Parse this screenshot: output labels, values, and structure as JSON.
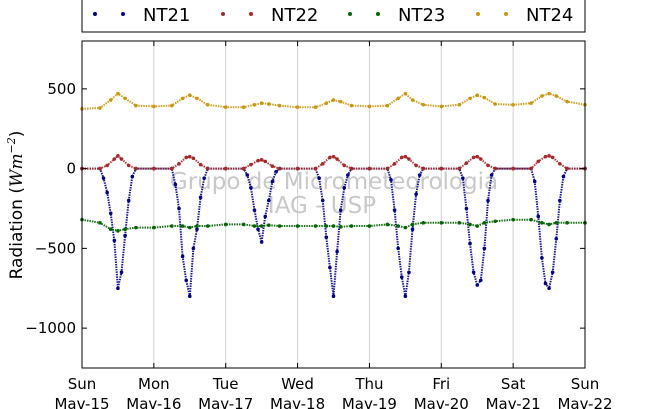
{
  "chart_data": {
    "type": "scatter",
    "title": "",
    "ylabel": "Radiation ($Wm^{-2}$)",
    "ylabel_text": "Radiation (",
    "ylabel_math": "Wm",
    "ylabel_exp": "−2",
    "ylabel_close": ")",
    "ylim": [
      -1250,
      800
    ],
    "yticks": [
      500,
      0,
      -500,
      -1000
    ],
    "ytick_labels": [
      "500",
      "0",
      "−500",
      "−1000"
    ],
    "xlim": [
      0,
      7
    ],
    "xticks": [
      0,
      1,
      2,
      3,
      4,
      5,
      6,
      7
    ],
    "xtick_labels": [
      [
        "Sun",
        "Mav-15"
      ],
      [
        "Mon",
        "Mav-16"
      ],
      [
        "Tue",
        "Mav-17"
      ],
      [
        "Wed",
        "Mav-18"
      ],
      [
        "Thu",
        "Mav-19"
      ],
      [
        "Fri",
        "Mav-20"
      ],
      [
        "Sat",
        "Mav-21"
      ],
      [
        "Sun",
        "Mav-22"
      ]
    ],
    "grid": true,
    "legend_position": "top",
    "watermark": [
      "Grupo de Micrometeorologia",
      "IAG - USP"
    ],
    "series": [
      {
        "name": "NT21",
        "color": "#000080",
        "x": [
          0,
          0.25,
          0.3,
          0.35,
          0.4,
          0.45,
          0.5,
          0.55,
          0.6,
          0.65,
          0.7,
          0.75,
          1,
          1.25,
          1.3,
          1.35,
          1.4,
          1.45,
          1.5,
          1.55,
          1.6,
          1.65,
          1.7,
          1.75,
          2,
          2.25,
          2.3,
          2.35,
          2.4,
          2.45,
          2.5,
          2.55,
          2.6,
          2.65,
          2.7,
          2.75,
          3,
          3.25,
          3.3,
          3.35,
          3.4,
          3.45,
          3.5,
          3.55,
          3.6,
          3.65,
          3.7,
          3.75,
          4,
          4.25,
          4.3,
          4.35,
          4.4,
          4.45,
          4.5,
          4.55,
          4.6,
          4.65,
          4.7,
          4.75,
          5,
          5.25,
          5.3,
          5.35,
          5.4,
          5.45,
          5.5,
          5.55,
          5.6,
          5.65,
          5.7,
          5.75,
          6,
          6.25,
          6.3,
          6.35,
          6.4,
          6.45,
          6.5,
          6.55,
          6.6,
          6.65,
          6.7,
          6.75,
          7
        ],
        "y": [
          0,
          0,
          -60,
          -150,
          -280,
          -450,
          -750,
          -650,
          -420,
          -200,
          -50,
          0,
          0,
          0,
          -100,
          -250,
          -550,
          -700,
          -800,
          -500,
          -380,
          -180,
          -60,
          0,
          0,
          0,
          -40,
          -120,
          -260,
          -380,
          -460,
          -300,
          -200,
          -80,
          -20,
          0,
          0,
          0,
          -60,
          -200,
          -430,
          -620,
          -800,
          -520,
          -260,
          -120,
          -40,
          0,
          0,
          0,
          -70,
          -260,
          -500,
          -680,
          -800,
          -650,
          -380,
          -160,
          -40,
          0,
          0,
          0,
          -60,
          -250,
          -470,
          -650,
          -730,
          -700,
          -500,
          -200,
          -40,
          0,
          0,
          0,
          -80,
          -300,
          -560,
          -720,
          -750,
          -650,
          -440,
          -200,
          -50,
          0,
          0
        ]
      },
      {
        "name": "NT22",
        "color": "#a52a2a",
        "x": [
          0,
          0.25,
          0.35,
          0.45,
          0.5,
          0.55,
          0.65,
          0.75,
          1,
          1.25,
          1.35,
          1.45,
          1.5,
          1.55,
          1.65,
          1.75,
          2,
          2.25,
          2.35,
          2.45,
          2.5,
          2.55,
          2.65,
          2.75,
          3,
          3.25,
          3.35,
          3.45,
          3.5,
          3.55,
          3.65,
          3.75,
          4,
          4.25,
          4.35,
          4.45,
          4.5,
          4.55,
          4.65,
          4.75,
          5,
          5.25,
          5.35,
          5.45,
          5.5,
          5.55,
          5.65,
          5.75,
          6,
          6.25,
          6.35,
          6.45,
          6.5,
          6.55,
          6.65,
          6.75,
          7
        ],
        "y": [
          0,
          0,
          20,
          60,
          80,
          60,
          20,
          0,
          0,
          0,
          30,
          70,
          75,
          65,
          25,
          0,
          0,
          0,
          25,
          50,
          55,
          45,
          15,
          0,
          0,
          0,
          30,
          70,
          75,
          60,
          20,
          0,
          0,
          0,
          30,
          70,
          75,
          60,
          20,
          0,
          0,
          0,
          35,
          70,
          75,
          60,
          20,
          0,
          0,
          0,
          45,
          75,
          80,
          70,
          30,
          0,
          0
        ]
      },
      {
        "name": "NT23",
        "color": "#006400",
        "x": [
          0,
          0.25,
          0.4,
          0.5,
          0.6,
          0.75,
          1,
          1.25,
          1.4,
          1.5,
          1.6,
          1.75,
          2,
          2.25,
          2.4,
          2.5,
          2.6,
          2.75,
          3,
          3.25,
          3.4,
          3.5,
          3.6,
          3.75,
          4,
          4.25,
          4.4,
          4.5,
          4.6,
          4.75,
          5,
          5.25,
          5.4,
          5.5,
          5.6,
          5.75,
          6,
          6.25,
          6.4,
          6.5,
          6.6,
          6.75,
          7
        ],
        "y": [
          -320,
          -340,
          -380,
          -390,
          -380,
          -370,
          -370,
          -360,
          -360,
          -370,
          -360,
          -360,
          -350,
          -350,
          -360,
          -360,
          -355,
          -360,
          -360,
          -360,
          -360,
          -360,
          -365,
          -360,
          -360,
          -350,
          -360,
          -370,
          -350,
          -340,
          -340,
          -340,
          -350,
          -360,
          -340,
          -330,
          -320,
          -320,
          -340,
          -350,
          -340,
          -340,
          -340
        ]
      },
      {
        "name": "NT24",
        "color": "#c8960f",
        "x": [
          0,
          0.25,
          0.4,
          0.5,
          0.6,
          0.75,
          1,
          1.25,
          1.4,
          1.5,
          1.6,
          1.75,
          2,
          2.25,
          2.4,
          2.5,
          2.6,
          2.75,
          3,
          3.25,
          3.4,
          3.5,
          3.6,
          3.75,
          4,
          4.25,
          4.4,
          4.5,
          4.6,
          4.75,
          5,
          5.25,
          5.4,
          5.5,
          5.6,
          5.75,
          6,
          6.25,
          6.4,
          6.5,
          6.6,
          6.75,
          7
        ],
        "y": [
          375,
          380,
          430,
          470,
          440,
          395,
          390,
          395,
          440,
          460,
          440,
          400,
          385,
          385,
          400,
          410,
          405,
          395,
          385,
          385,
          410,
          430,
          420,
          395,
          390,
          395,
          440,
          470,
          430,
          400,
          390,
          400,
          440,
          460,
          445,
          405,
          400,
          410,
          455,
          470,
          455,
          420,
          400
        ]
      }
    ]
  }
}
